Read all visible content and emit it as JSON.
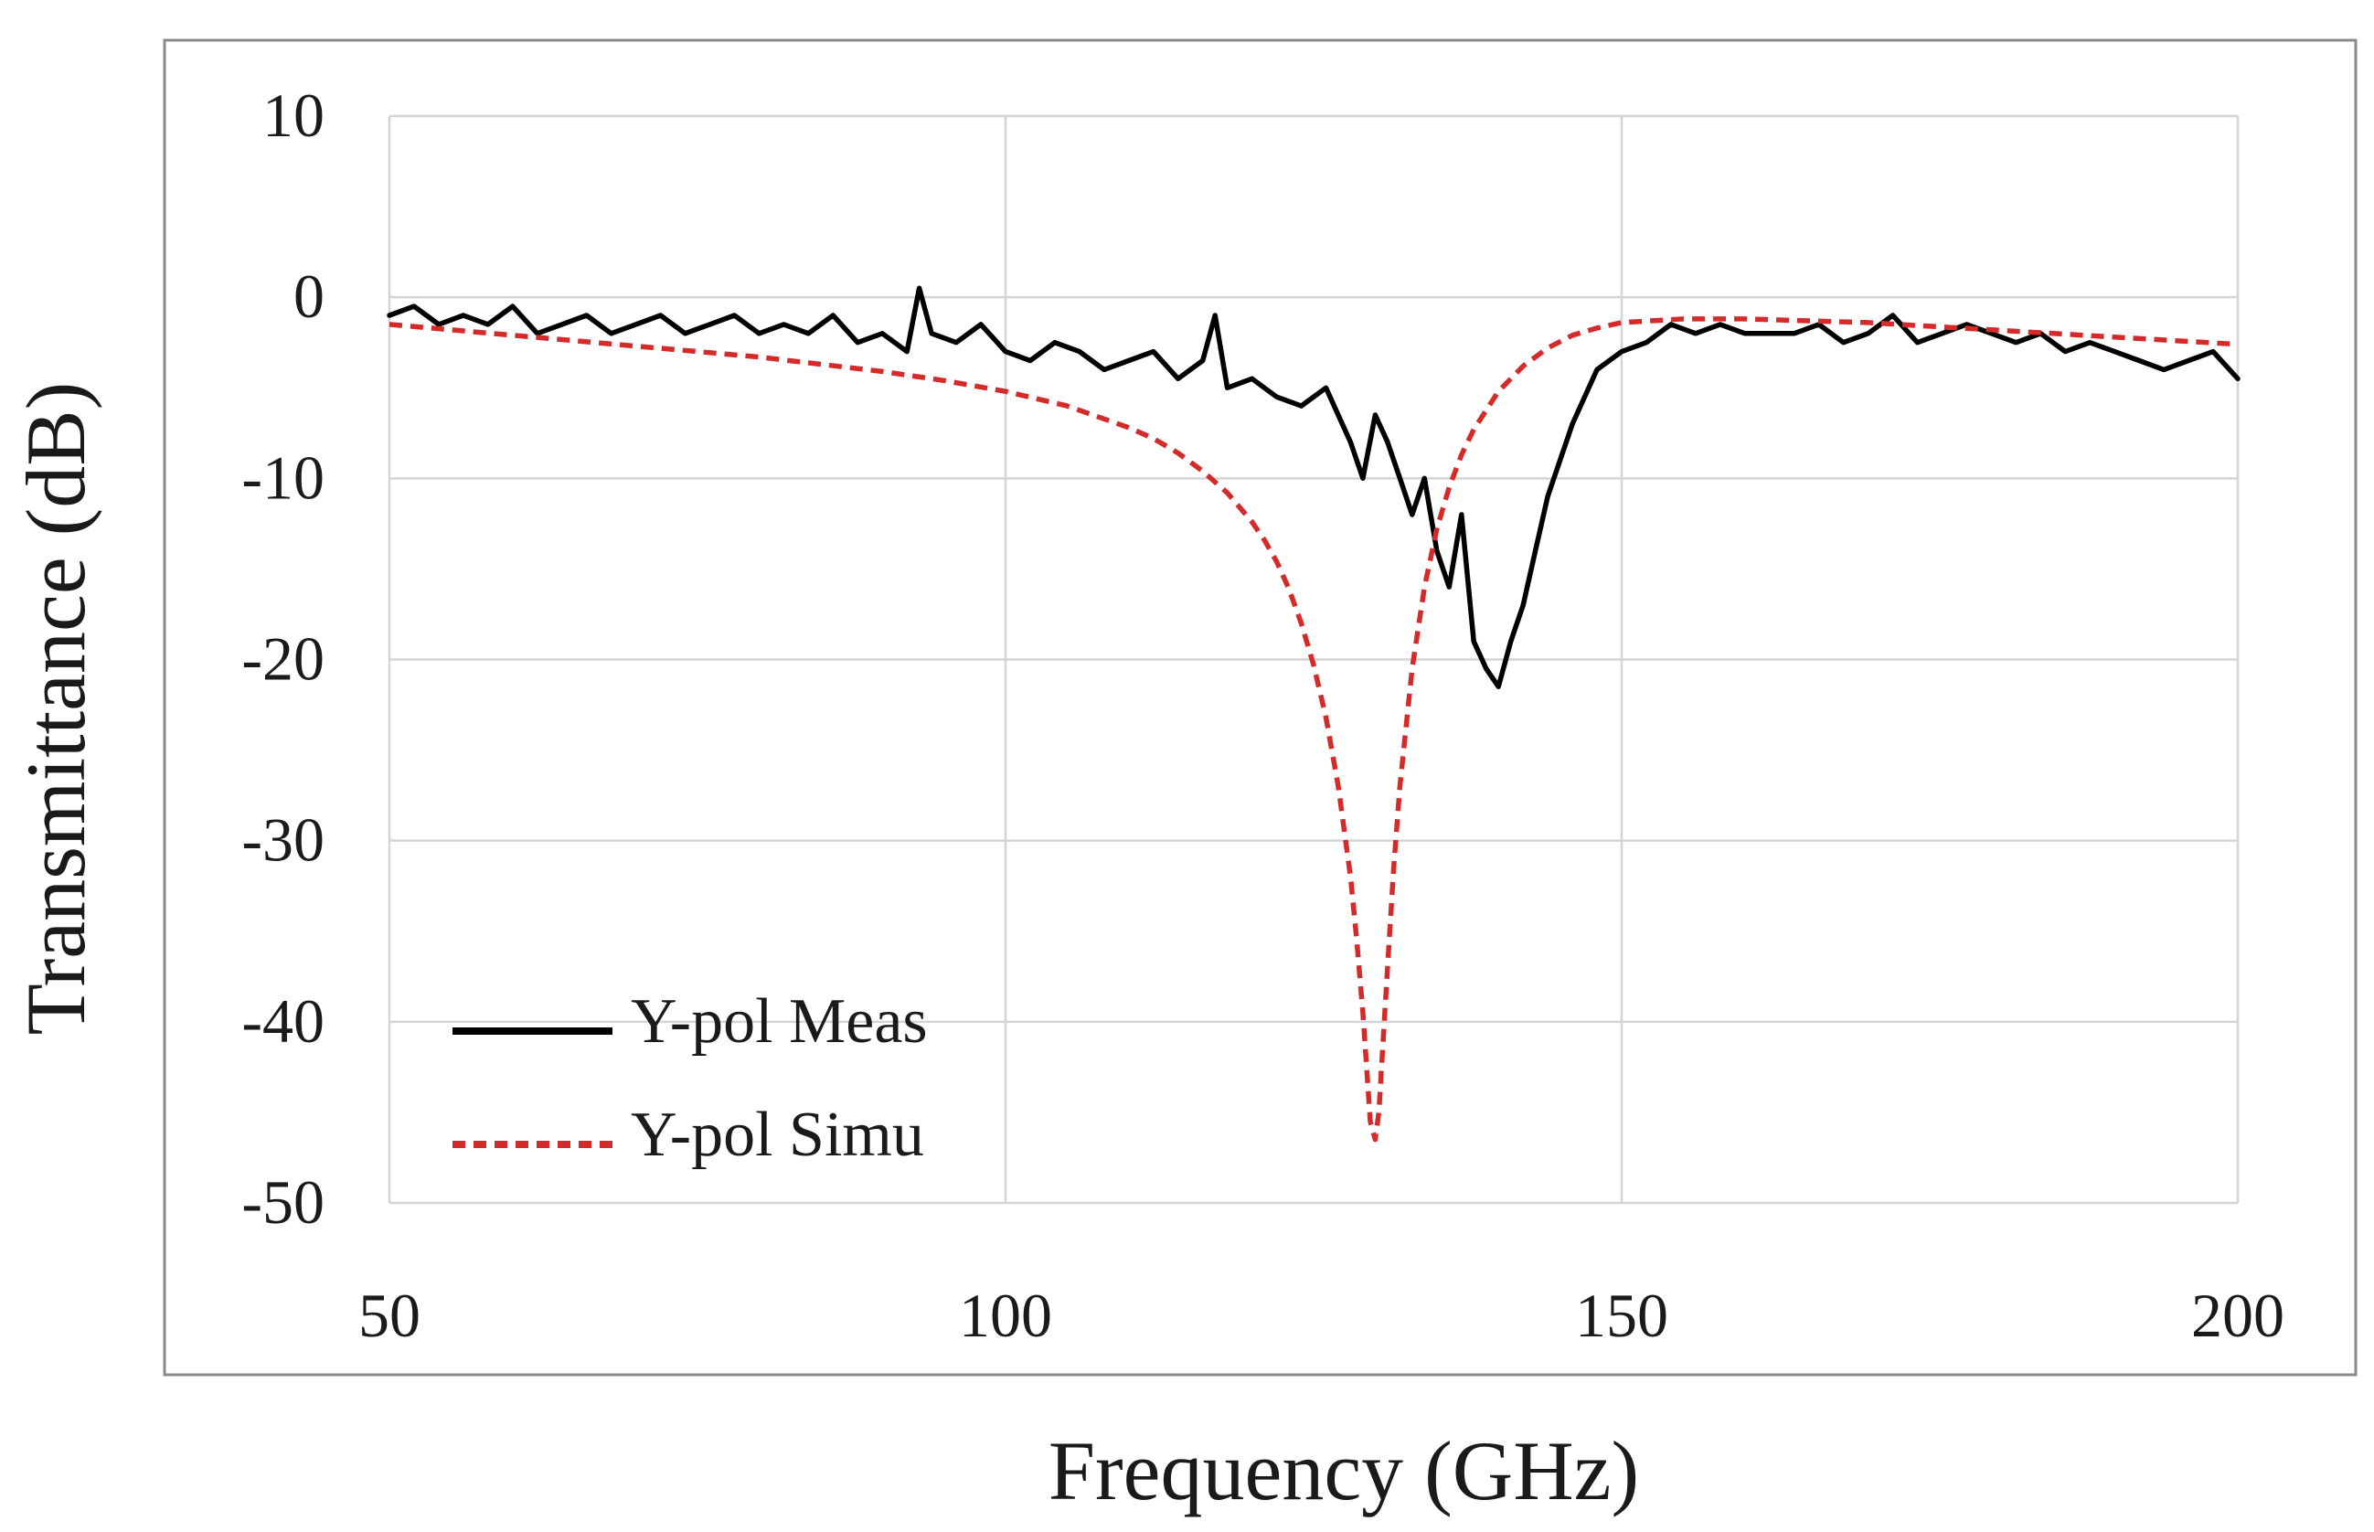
{
  "chart_data": {
    "type": "line",
    "title": "",
    "xlabel": "Frequency (GHz)",
    "ylabel": "Transmittance (dB)",
    "xlim": [
      50,
      200
    ],
    "ylim": [
      -50,
      10
    ],
    "x_ticks": [
      50,
      100,
      150,
      200
    ],
    "y_ticks": [
      10,
      0,
      -10,
      -20,
      -30,
      -40,
      -50
    ],
    "grid": true,
    "legend_position": "bottom-left",
    "series": [
      {
        "name": "Y-pol Meas",
        "color": "#000000",
        "style": "solid",
        "x": [
          50,
          52,
          54,
          56,
          58,
          60,
          62,
          64,
          66,
          68,
          70,
          72,
          74,
          76,
          78,
          80,
          82,
          84,
          86,
          88,
          90,
          92,
          93,
          94,
          96,
          98,
          100,
          102,
          104,
          106,
          108,
          110,
          112,
          114,
          116,
          117,
          118,
          120,
          122,
          124,
          126,
          128,
          129,
          130,
          131,
          132,
          133,
          134,
          135,
          136,
          137,
          138,
          139,
          140,
          141,
          142,
          143,
          144,
          146,
          148,
          150,
          152,
          154,
          156,
          158,
          160,
          162,
          164,
          166,
          168,
          170,
          172,
          174,
          176,
          178,
          180,
          182,
          184,
          186,
          188,
          190,
          192,
          194,
          196,
          198,
          200
        ],
        "values": [
          -1,
          -0.5,
          -1.5,
          -1,
          -1.5,
          -0.5,
          -2,
          -1.5,
          -1,
          -2,
          -1.5,
          -1,
          -2,
          -1.5,
          -1,
          -2,
          -1.5,
          -2,
          -1,
          -2.5,
          -2,
          -3,
          0.5,
          -2,
          -2.5,
          -1.5,
          -3,
          -3.5,
          -2.5,
          -3,
          -4,
          -3.5,
          -3,
          -4.5,
          -3.5,
          -1,
          -5,
          -4.5,
          -5.5,
          -6,
          -5,
          -8,
          -10,
          -6.5,
          -8,
          -10,
          -12,
          -10,
          -14,
          -16,
          -12,
          -19,
          -20.5,
          -21.5,
          -19,
          -17,
          -14,
          -11,
          -7,
          -4,
          -3,
          -2.5,
          -1.5,
          -2,
          -1.5,
          -2,
          -2,
          -2,
          -1.5,
          -2.5,
          -2,
          -1,
          -2.5,
          -2,
          -1.5,
          -2,
          -2.5,
          -2,
          -3,
          -2.5,
          -3,
          -3.5,
          -4,
          -3.5,
          -3,
          -4.5
        ]
      },
      {
        "name": "Y-pol Simu",
        "color": "#d42a2a",
        "style": "dashed",
        "x": [
          50,
          55,
          60,
          65,
          70,
          75,
          80,
          85,
          90,
          95,
          100,
          105,
          110,
          112,
          114,
          116,
          118,
          120,
          121,
          122,
          123,
          124,
          125,
          126,
          127,
          128,
          128.5,
          129,
          129.3,
          129.6,
          130,
          130.3,
          130.6,
          131,
          131.5,
          132,
          133,
          134,
          135,
          136,
          137,
          138,
          140,
          142,
          144,
          146,
          148,
          150,
          155,
          160,
          165,
          170,
          175,
          180,
          185,
          190,
          195,
          200
        ],
        "values": [
          -1.5,
          -1.8,
          -2.1,
          -2.4,
          -2.7,
          -3.0,
          -3.3,
          -3.7,
          -4.1,
          -4.6,
          -5.2,
          -6.0,
          -7.2,
          -7.8,
          -8.6,
          -9.6,
          -10.8,
          -12.4,
          -13.4,
          -14.6,
          -16.1,
          -18.0,
          -20.3,
          -23.2,
          -27.0,
          -32.0,
          -35.5,
          -39.5,
          -42.5,
          -45.5,
          -46.5,
          -45.0,
          -41.5,
          -37.0,
          -31.5,
          -27.0,
          -20.5,
          -16.0,
          -12.8,
          -10.5,
          -8.7,
          -7.3,
          -5.2,
          -3.8,
          -2.8,
          -2.1,
          -1.7,
          -1.4,
          -1.2,
          -1.2,
          -1.3,
          -1.4,
          -1.6,
          -1.8,
          -2.0,
          -2.2,
          -2.4,
          -2.6
        ]
      }
    ]
  }
}
